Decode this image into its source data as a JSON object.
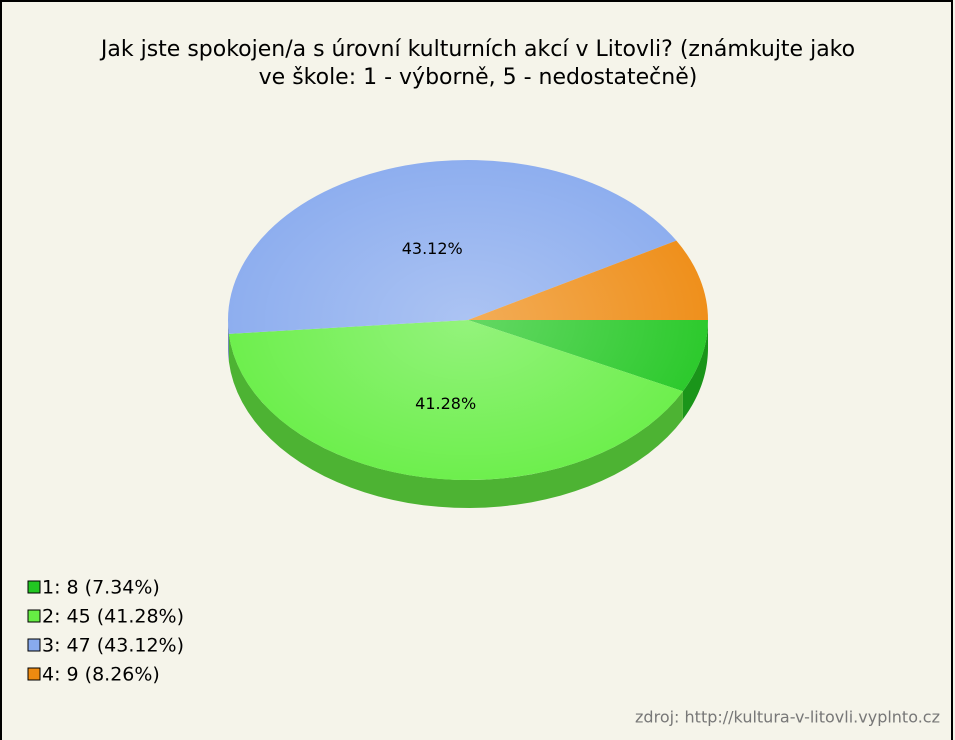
{
  "chart_data": {
    "type": "pie",
    "title": [
      "Jak jste spokojen/a s úrovní kulturních akcí v Litovli? (známkujte jako",
      "ve škole: 1 - výborně, 5 - nedostatečně)"
    ],
    "categories": [
      "1",
      "2",
      "3",
      "4"
    ],
    "values": [
      7.34,
      41.28,
      43.12,
      8.26
    ],
    "value_labels": [
      null,
      "41.28%",
      "43.12%",
      null
    ],
    "legend_labels": [
      "1: 8 (7.34%)",
      "2: 45 (41.28%)",
      "3: 47 (43.12%)",
      "4: 9 (8.26%)"
    ],
    "colors": [
      "#22c722",
      "#66ee44",
      "#88aaee",
      "#ee8a10"
    ],
    "source": "zdroj: http://kultura-v-litovli.vyplnto.cz"
  }
}
